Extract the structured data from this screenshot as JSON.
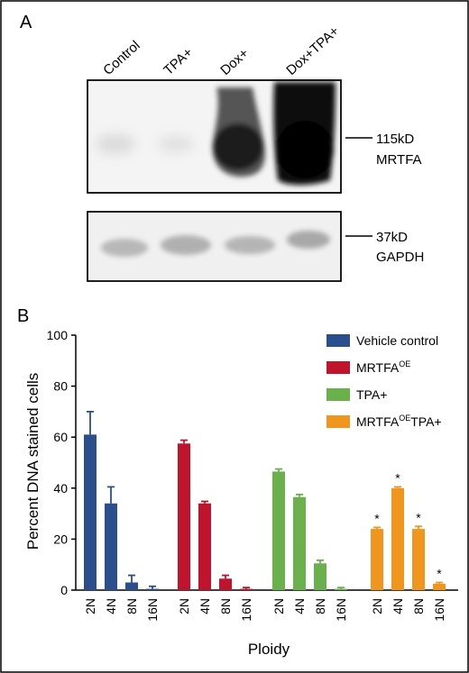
{
  "panel_a": {
    "letter": "A",
    "lanes": [
      "Control",
      "TPA+",
      "Dox+",
      "Dox+TPA+"
    ],
    "mrtfa_blot": {
      "size": "115kD",
      "name": "MRTFA"
    },
    "gapdh_blot": {
      "size": "37kD",
      "name": "GAPDH"
    }
  },
  "panel_b": {
    "letter": "B",
    "ylabel": "Percent DNA stained cells",
    "xlabel": "Ploidy"
  },
  "colors": {
    "vehicle": "#2b4f8c",
    "mrtfa_oe": "#c0132d",
    "tpa": "#6ab04c",
    "mrtfa_oe_tpa": "#f0961e"
  },
  "chart_data": {
    "type": "bar",
    "categories": [
      "2N",
      "4N",
      "8N",
      "16N"
    ],
    "ylim": [
      0,
      100
    ],
    "yticks": [
      0,
      20,
      40,
      60,
      80,
      100
    ],
    "ylabel": "Percent DNA stained cells",
    "xlabel": "Ploidy",
    "series": [
      {
        "name": "Vehicle control",
        "legend_main": "Vehicle control",
        "legend_sup": "",
        "legend_tail": "",
        "color": "#2b4f8c",
        "values": [
          61,
          34,
          3,
          0.5
        ],
        "errors": [
          9,
          6.5,
          2.8,
          1
        ],
        "significance": [
          "",
          "",
          "",
          ""
        ]
      },
      {
        "name": "MRTFA OE",
        "legend_main": "MRTFA",
        "legend_sup": "OE",
        "legend_tail": "",
        "color": "#c0132d",
        "values": [
          57.5,
          34,
          4.5,
          0.5
        ],
        "errors": [
          1.3,
          0.8,
          1.3,
          0.5
        ],
        "significance": [
          "",
          "",
          "",
          ""
        ]
      },
      {
        "name": "TPA+",
        "legend_main": "TPA+",
        "legend_sup": "",
        "legend_tail": "",
        "color": "#6ab04c",
        "values": [
          46.5,
          36.5,
          10.5,
          0.5
        ],
        "errors": [
          1,
          1,
          1.2,
          0.5
        ],
        "significance": [
          "",
          "",
          "",
          ""
        ]
      },
      {
        "name": "MRTFA OE TPA+",
        "legend_main": "MRTFA",
        "legend_sup": "OE",
        "legend_tail": "TPA+",
        "color": "#f0961e",
        "values": [
          24,
          40,
          24,
          2.5
        ],
        "errors": [
          0.6,
          0.5,
          1,
          0.5
        ],
        "significance": [
          "*",
          "*",
          "*",
          "*"
        ]
      }
    ],
    "legend_position": "top-right"
  }
}
